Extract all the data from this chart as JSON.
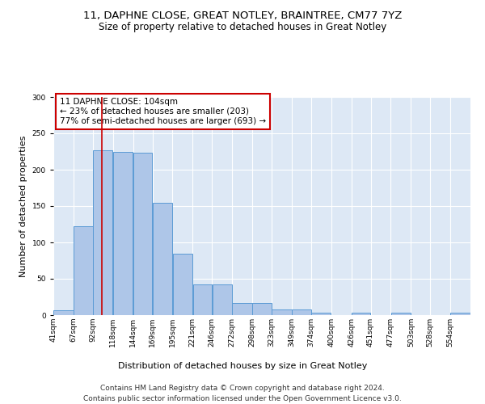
{
  "title1": "11, DAPHNE CLOSE, GREAT NOTLEY, BRAINTREE, CM77 7YZ",
  "title2": "Size of property relative to detached houses in Great Notley",
  "xlabel": "Distribution of detached houses by size in Great Notley",
  "ylabel": "Number of detached properties",
  "categories": [
    "41sqm",
    "67sqm",
    "92sqm",
    "118sqm",
    "144sqm",
    "169sqm",
    "195sqm",
    "221sqm",
    "246sqm",
    "272sqm",
    "298sqm",
    "323sqm",
    "349sqm",
    "374sqm",
    "400sqm",
    "426sqm",
    "451sqm",
    "477sqm",
    "503sqm",
    "528sqm",
    "554sqm"
  ],
  "values": [
    7,
    122,
    227,
    225,
    223,
    155,
    85,
    42,
    42,
    17,
    17,
    8,
    8,
    3,
    0,
    3,
    0,
    3,
    0,
    0,
    3
  ],
  "bar_color": "#aec6e8",
  "bar_edge_color": "#5b9bd5",
  "property_line_x": 104,
  "bin_edges": [
    41,
    67,
    92,
    118,
    144,
    169,
    195,
    221,
    246,
    272,
    298,
    323,
    349,
    374,
    400,
    426,
    451,
    477,
    503,
    528,
    554,
    580
  ],
  "annotation_text": "11 DAPHNE CLOSE: 104sqm\n← 23% of detached houses are smaller (203)\n77% of semi-detached houses are larger (693) →",
  "annotation_box_color": "#ffffff",
  "annotation_box_edge": "#cc0000",
  "red_line_color": "#cc0000",
  "ylim": [
    0,
    300
  ],
  "yticks": [
    0,
    50,
    100,
    150,
    200,
    250,
    300
  ],
  "background_color": "#dde8f5",
  "footer1": "Contains HM Land Registry data © Crown copyright and database right 2024.",
  "footer2": "Contains public sector information licensed under the Open Government Licence v3.0.",
  "title_fontsize": 9.5,
  "subtitle_fontsize": 8.5,
  "ylabel_fontsize": 8,
  "xlabel_fontsize": 8,
  "tick_fontsize": 6.5,
  "annotation_fontsize": 7.5,
  "footer_fontsize": 6.5
}
